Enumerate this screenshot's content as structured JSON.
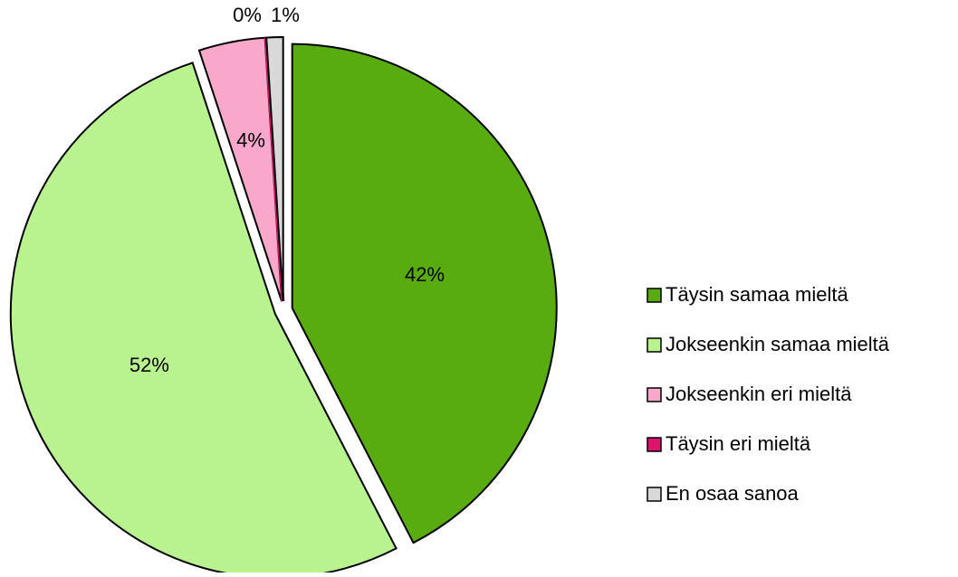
{
  "chart_data": {
    "type": "pie",
    "categories": [
      "Täysin samaa mieltä",
      "Jokseenkin samaa mieltä",
      "Jokseenkin eri mieltä",
      "Täysin eri mieltä",
      "En osaa sanoa"
    ],
    "values": [
      42,
      52,
      4,
      0,
      1
    ],
    "value_labels": [
      "42%",
      "52%",
      "4%",
      "0%",
      "1%"
    ],
    "colors": [
      "#58ac0f",
      "#b8f38f",
      "#f9a8cc",
      "#e0136c",
      "#d9d9d9"
    ],
    "legend": "right"
  }
}
